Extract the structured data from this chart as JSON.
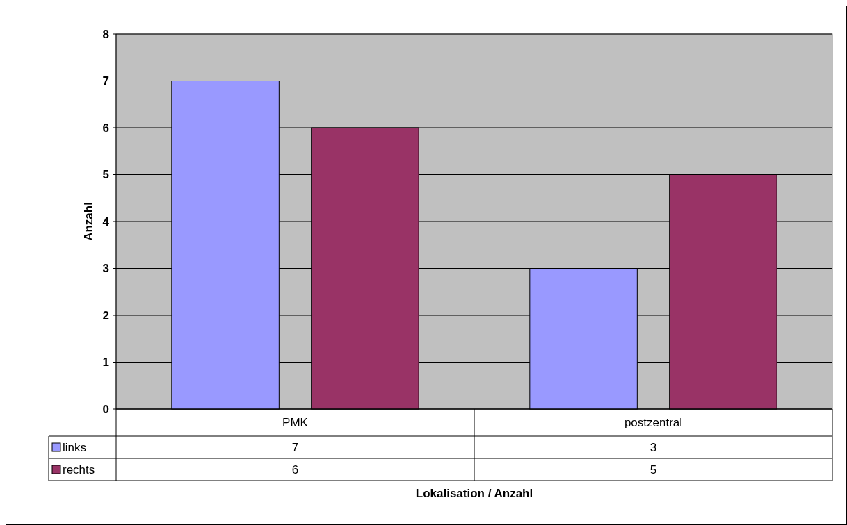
{
  "chart_data": {
    "type": "bar",
    "xlabel": "Lokalisation / Anzahl",
    "ylabel": "Anzahl",
    "categories": [
      "PMK",
      "postzentral"
    ],
    "series": [
      {
        "name": "links",
        "color": "#9999ff",
        "values": [
          7,
          3
        ]
      },
      {
        "name": "rechts",
        "color": "#993366",
        "values": [
          6,
          5
        ]
      }
    ],
    "ylim": [
      0,
      8
    ],
    "yticks": [
      0,
      1,
      2,
      3,
      4,
      5,
      6,
      7,
      8
    ],
    "grid": "y",
    "legend": "bottom",
    "data_labels": true
  }
}
